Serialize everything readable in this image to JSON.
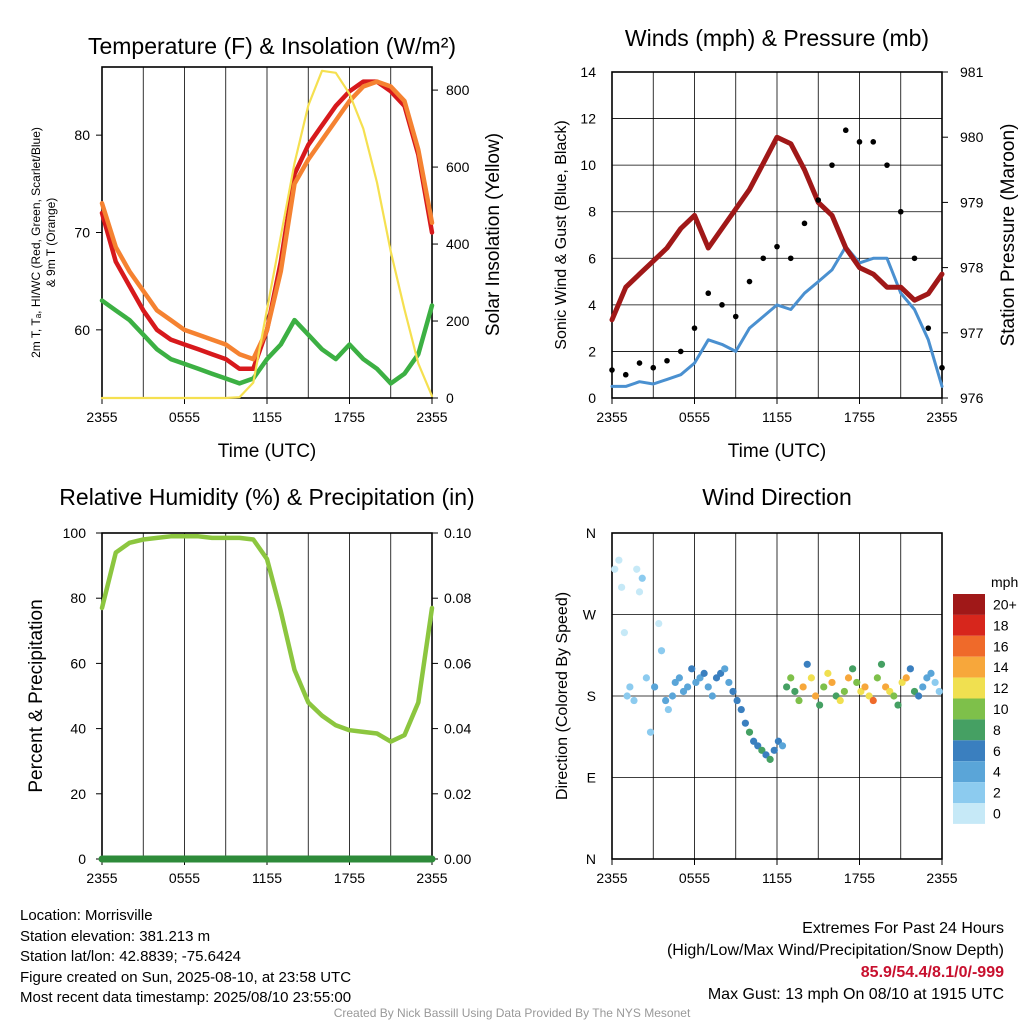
{
  "colors": {
    "red": "#d7191c",
    "green": "#3cb043",
    "orange": "#f58231",
    "yellow": "#f5e050",
    "maroon": "#a01818",
    "blue": "#4a90d0",
    "black": "#000000",
    "rh": "#8cc63f",
    "precip": "#2e8b3a"
  },
  "info": {
    "location": "Location: Morrisville",
    "elevation": "Station elevation: 381.213 m",
    "latlon": "Station lat/lon: 42.8839; -75.6424",
    "created": "Figure created on Sun, 2025-08-10, at 23:58 UTC",
    "recent": "Most recent data timestamp: 2025/08/10 23:55:00",
    "extremes_title": "Extremes For Past 24 Hours",
    "extremes_sub": "(High/Low/Max Wind/Precipitation/Snow Depth)",
    "extremes_values": "85.9/54.4/8.1/0/-999",
    "max_gust": "Max Gust: 13 mph On 08/10 at 1915 UTC",
    "credit": "Created By Nick Bassill Using Data Provided By The NYS Mesonet"
  },
  "chart_data": [
    {
      "id": "temp",
      "type": "line",
      "title": "Temperature (F) & Insolation (W/m²)",
      "xlabel": "Time (UTC)",
      "ylabel_left_1": "2m T, Tₐ, HI/WC (Red, Green, Scarlet/Blue)",
      "ylabel_left_2": "& 9m T (Orange)",
      "ylabel_right": "Solar Insolation (Yellow)",
      "xticks": [
        "2355",
        "0555",
        "1155",
        "1755",
        "2355"
      ],
      "yticks_left": [
        60,
        70,
        80
      ],
      "yticks_right": [
        0,
        200,
        400,
        600,
        800
      ],
      "ylim_left": [
        53,
        87
      ],
      "ylim_right": [
        0,
        860
      ],
      "x_hours": [
        0,
        1,
        2,
        3,
        4,
        5,
        6,
        7,
        8,
        9,
        10,
        11,
        12,
        13,
        14,
        15,
        16,
        17,
        18,
        19,
        20,
        21,
        22,
        23,
        24
      ],
      "series": [
        {
          "name": "2m T",
          "color": "red",
          "axis": "left",
          "values": [
            72,
            67,
            64.5,
            62,
            60,
            59,
            58.5,
            58,
            57.5,
            57,
            56,
            56,
            60,
            67,
            76,
            79,
            81,
            83,
            84.5,
            85.5,
            85.5,
            84.5,
            83,
            78,
            70
          ]
        },
        {
          "name": "9m T",
          "color": "orange",
          "axis": "left",
          "values": [
            73,
            68.5,
            66,
            64,
            62,
            61,
            60,
            59.5,
            59,
            58.5,
            57.5,
            57,
            60,
            66,
            75,
            77.5,
            79.5,
            81.5,
            83.5,
            85,
            85.5,
            85,
            83.5,
            78.5,
            71
          ]
        },
        {
          "name": "Tₐ",
          "color": "green",
          "axis": "left",
          "values": [
            63,
            62,
            61,
            59.5,
            58,
            57,
            56.5,
            56,
            55.5,
            55,
            54.5,
            55,
            57,
            58.5,
            61,
            59.5,
            58,
            57,
            58.5,
            57,
            56,
            54.5,
            55.5,
            57.5,
            62.5
          ]
        },
        {
          "name": "Solar Insolation",
          "color": "yellow",
          "axis": "right",
          "values": [
            0,
            0,
            0,
            0,
            0,
            0,
            0,
            0,
            0,
            0,
            2,
            40,
            230,
            420,
            610,
            760,
            850,
            845,
            790,
            700,
            560,
            380,
            230,
            90,
            5
          ]
        }
      ]
    },
    {
      "id": "wind",
      "type": "line",
      "title": "Winds (mph) & Pressure (mb)",
      "xlabel": "Time (UTC)",
      "ylabel_left": "Sonic Wind & Gust (Blue, Black)",
      "ylabel_right": "Station Pressure (Maroon)",
      "xticks": [
        "2355",
        "0555",
        "1155",
        "1755",
        "2355"
      ],
      "yticks_left": [
        0,
        2,
        4,
        6,
        8,
        10,
        12,
        14
      ],
      "yticks_right": [
        976,
        977,
        978,
        979,
        980,
        981
      ],
      "ylim_left": [
        0,
        14
      ],
      "ylim_right": [
        976,
        981
      ],
      "x_hours": [
        0,
        1,
        2,
        3,
        4,
        5,
        6,
        7,
        8,
        9,
        10,
        11,
        12,
        13,
        14,
        15,
        16,
        17,
        18,
        19,
        20,
        21,
        22,
        23,
        24
      ],
      "series": [
        {
          "name": "Sonic Wind",
          "color": "blue",
          "axis": "left",
          "values": [
            0.5,
            0.5,
            0.7,
            0.6,
            0.8,
            1.0,
            1.5,
            2.5,
            2.3,
            2.0,
            3.0,
            3.5,
            4.0,
            3.8,
            4.5,
            5.0,
            5.5,
            6.5,
            5.8,
            6.0,
            6.0,
            4.5,
            3.8,
            2.5,
            0.5
          ]
        },
        {
          "name": "Gust",
          "color": "black",
          "axis": "left",
          "values": [
            1.2,
            1.0,
            1.5,
            1.3,
            1.6,
            2.0,
            3.0,
            4.5,
            4.0,
            3.5,
            5.0,
            6.0,
            6.5,
            6.0,
            7.5,
            8.5,
            10.0,
            11.5,
            11.0,
            11.0,
            10.0,
            8.0,
            6.0,
            3.0,
            1.3
          ]
        },
        {
          "name": "Station Pressure",
          "color": "maroon",
          "axis": "right",
          "values": [
            977.2,
            977.7,
            977.9,
            978.1,
            978.3,
            978.6,
            978.8,
            978.3,
            978.6,
            978.9,
            979.2,
            979.6,
            980.0,
            979.9,
            979.5,
            979.0,
            978.8,
            978.3,
            978.0,
            977.9,
            977.7,
            977.7,
            977.5,
            977.6,
            977.9
          ]
        }
      ]
    },
    {
      "id": "rh",
      "type": "line",
      "title": "Relative Humidity (%) & Precipitation (in)",
      "xlabel": "",
      "ylabel_left": "Percent & Precipitation",
      "ylabel_right": "",
      "xticks": [
        "2355",
        "0555",
        "1155",
        "1755",
        "2355"
      ],
      "yticks_left": [
        0,
        20,
        40,
        60,
        80,
        100
      ],
      "yticks_right": [
        "0.00",
        "0.02",
        "0.04",
        "0.06",
        "0.08",
        "0.10"
      ],
      "ylim_left": [
        0,
        100
      ],
      "ylim_right": [
        0,
        0.1
      ],
      "x_hours": [
        0,
        1,
        2,
        3,
        4,
        5,
        6,
        7,
        8,
        9,
        10,
        11,
        12,
        13,
        14,
        15,
        16,
        17,
        18,
        19,
        20,
        21,
        22,
        23,
        24
      ],
      "series": [
        {
          "name": "Relative Humidity",
          "color": "rh",
          "axis": "left",
          "values": [
            77,
            94,
            97,
            98,
            98.5,
            99,
            99,
            99,
            98.5,
            98.5,
            98.5,
            98,
            92,
            76,
            58,
            48,
            44,
            41,
            39.5,
            39,
            38.5,
            36,
            38,
            48,
            77
          ]
        },
        {
          "name": "Precipitation",
          "color": "precip",
          "axis": "right",
          "values": [
            0,
            0,
            0,
            0,
            0,
            0,
            0,
            0,
            0,
            0,
            0,
            0,
            0,
            0,
            0,
            0,
            0,
            0,
            0,
            0,
            0,
            0,
            0,
            0,
            0
          ]
        }
      ]
    },
    {
      "id": "wdir",
      "type": "scatter",
      "title": "Wind Direction",
      "xlabel": "",
      "ylabel": "Direction (Colored By Speed)",
      "xticks": [
        "2355",
        "0555",
        "1155",
        "1755",
        "2355"
      ],
      "yticks": [
        "N",
        "E",
        "S",
        "W",
        "N"
      ],
      "ylim_deg": [
        0,
        360
      ],
      "legend_title": "mph",
      "legend_labels": [
        "0",
        "2",
        "4",
        "6",
        "8",
        "10",
        "12",
        "14",
        "16",
        "18",
        "20+"
      ],
      "legend_colors": [
        "#c6e9f7",
        "#8ccbef",
        "#5aa5d8",
        "#3a7fbf",
        "#45a063",
        "#7ec04a",
        "#f0e050",
        "#f7a73b",
        "#ef6a2a",
        "#d7261c",
        "#a01818"
      ],
      "x_hours": [
        0.2,
        0.5,
        0.7,
        0.9,
        1.1,
        1.3,
        1.6,
        1.8,
        2.0,
        2.2,
        2.5,
        2.8,
        3.1,
        3.4,
        3.6,
        3.9,
        4.1,
        4.4,
        4.6,
        4.9,
        5.2,
        5.5,
        5.8,
        6.1,
        6.4,
        6.7,
        7.0,
        7.3,
        7.6,
        7.9,
        8.2,
        8.5,
        8.8,
        9.1,
        9.4,
        9.7,
        10.0,
        10.3,
        10.6,
        10.9,
        11.2,
        11.5,
        11.8,
        12.1,
        12.4,
        12.7,
        13.0,
        13.3,
        13.6,
        13.9,
        14.2,
        14.5,
        14.8,
        15.1,
        15.4,
        15.7,
        16.0,
        16.3,
        16.6,
        16.9,
        17.2,
        17.5,
        17.8,
        18.1,
        18.4,
        18.7,
        19.0,
        19.3,
        19.6,
        19.9,
        20.2,
        20.5,
        20.8,
        21.1,
        21.4,
        21.7,
        22.0,
        22.3,
        22.6,
        22.9,
        23.2,
        23.5,
        23.8
      ],
      "values_deg": [
        320,
        330,
        300,
        250,
        180,
        190,
        175,
        320,
        295,
        310,
        200,
        140,
        190,
        260,
        230,
        175,
        165,
        180,
        195,
        200,
        185,
        190,
        210,
        195,
        200,
        205,
        190,
        180,
        200,
        205,
        210,
        195,
        185,
        175,
        165,
        150,
        140,
        130,
        125,
        120,
        115,
        110,
        120,
        130,
        125,
        190,
        200,
        185,
        175,
        190,
        215,
        200,
        180,
        170,
        190,
        205,
        195,
        180,
        175,
        185,
        200,
        210,
        195,
        185,
        190,
        180,
        175,
        200,
        215,
        190,
        185,
        180,
        170,
        195,
        200,
        210,
        185,
        180,
        190,
        200,
        205,
        195,
        185
      ],
      "speeds": [
        0,
        0,
        0,
        0,
        1,
        1,
        1,
        0,
        0,
        1,
        1,
        1,
        2,
        0,
        1,
        2,
        1,
        2,
        2,
        2,
        2,
        2,
        3,
        2,
        2,
        3,
        2,
        2,
        3,
        3,
        2,
        2,
        3,
        3,
        3,
        3,
        4,
        3,
        3,
        4,
        3,
        4,
        3,
        3,
        2,
        4,
        5,
        4,
        5,
        7,
        3,
        6,
        7,
        4,
        5,
        6,
        7,
        4,
        6,
        5,
        7,
        4,
        5,
        6,
        7,
        6,
        8,
        5,
        4,
        7,
        6,
        5,
        4,
        6,
        7,
        3,
        4,
        3,
        2,
        2,
        2,
        1,
        1
      ]
    }
  ]
}
